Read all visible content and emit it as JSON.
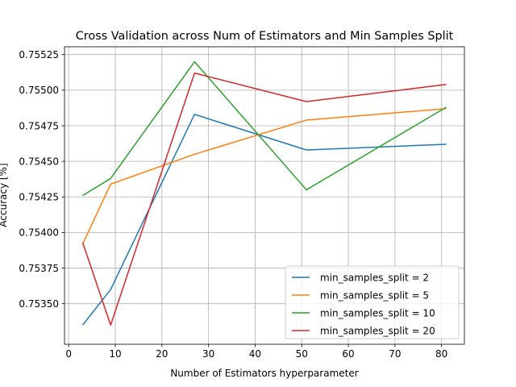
{
  "chart_data": {
    "type": "line",
    "title": "Cross Validation across Num of Estimators and Min Samples Split",
    "xlabel": "Number of Estimators hyperparameter",
    "ylabel": "Accuracy [%]",
    "x": [
      3,
      9,
      27,
      51,
      81
    ],
    "xlim": [
      -0.9,
      84.9
    ],
    "ylim": [
      0.753215,
      0.755305
    ],
    "xticks": [
      0,
      10,
      20,
      30,
      40,
      50,
      60,
      70,
      80
    ],
    "yticks": [
      0.7535,
      0.75375,
      0.754,
      0.75425,
      0.7545,
      0.75475,
      0.755,
      0.75525
    ],
    "yticks_labels": [
      "0.75350",
      "0.75375",
      "0.75400",
      "0.75425",
      "0.75450",
      "0.75475",
      "0.75500",
      "0.75525"
    ],
    "grid": true,
    "legend_position": "lower-right",
    "series": [
      {
        "name": "min_samples_split = 2",
        "color": "#1f77b4",
        "values": [
          0.75335,
          0.7536,
          0.75483,
          0.75458,
          0.75462
        ]
      },
      {
        "name": "min_samples_split = 5",
        "color": "#ff7f0e",
        "values": [
          0.75392,
          0.75434,
          0.75455,
          0.75479,
          0.75487
        ]
      },
      {
        "name": "min_samples_split = 10",
        "color": "#2ca02c",
        "values": [
          0.75426,
          0.75438,
          0.7552,
          0.7543,
          0.75488
        ]
      },
      {
        "name": "min_samples_split = 20",
        "color": "#d62728",
        "values": [
          0.75393,
          0.75335,
          0.75512,
          0.75492,
          0.75504
        ]
      }
    ]
  }
}
